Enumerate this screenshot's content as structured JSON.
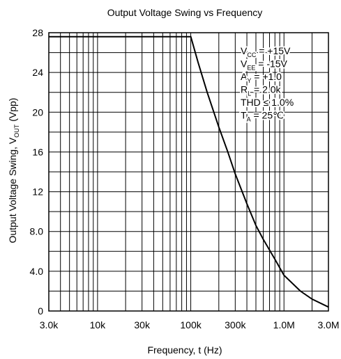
{
  "chart_data": {
    "type": "line",
    "title": "Output Voltage Swing vs Frequency",
    "title_text": "Output Voltage Swing vs Frequency",
    "xlabel": "Frequency, t (Hz)",
    "ylabel": {
      "prefix": "Output Voltage Swing, V",
      "sub": "OUT",
      "suffix": " (Vpp)"
    },
    "x_scale": "log",
    "xlim": [
      3000,
      3000000
    ],
    "ylim": [
      0,
      28
    ],
    "grid": true,
    "x_ticks": [
      {
        "value": 3000,
        "label": "3.0k"
      },
      {
        "value": 10000,
        "label": "10k"
      },
      {
        "value": 30000,
        "label": "30k"
      },
      {
        "value": 100000,
        "label": "100k"
      },
      {
        "value": 300000,
        "label": "300k"
      },
      {
        "value": 1000000,
        "label": "1.0M"
      },
      {
        "value": 3000000,
        "label": "3.0M"
      }
    ],
    "y_ticks": [
      {
        "value": 0,
        "label": "0"
      },
      {
        "value": 4,
        "label": "4.0"
      },
      {
        "value": 8,
        "label": "8.0"
      },
      {
        "value": 12,
        "label": "12"
      },
      {
        "value": 16,
        "label": "16"
      },
      {
        "value": 20,
        "label": "20"
      },
      {
        "value": 24,
        "label": "24"
      },
      {
        "value": 28,
        "label": "28"
      }
    ],
    "series": [
      {
        "x": [
          3000,
          10000,
          30000,
          100000,
          120000,
          150000,
          200000,
          250000,
          300000,
          400000,
          500000,
          600000,
          800000,
          1000000,
          1500000,
          2000000,
          3000000
        ],
        "y": [
          27.6,
          27.6,
          27.6,
          27.6,
          25.0,
          22.0,
          18.5,
          16.0,
          13.8,
          10.8,
          8.6,
          7.2,
          5.2,
          3.6,
          2.0,
          1.2,
          0.4
        ]
      }
    ],
    "annotations": [
      {
        "main": "V",
        "sub": "CC",
        "rest": " = +15V"
      },
      {
        "main": "V",
        "sub": "EE",
        "rest": " = -15V"
      },
      {
        "main": "A",
        "sub": "Y",
        "rest": " = +1.0"
      },
      {
        "main": "R",
        "sub": "L",
        "rest": " = 2.0k"
      },
      {
        "main": "THD ≤ 1.0%",
        "sub": "",
        "rest": ""
      },
      {
        "main": "T",
        "sub": "A",
        "rest": " = 25℃"
      }
    ]
  }
}
